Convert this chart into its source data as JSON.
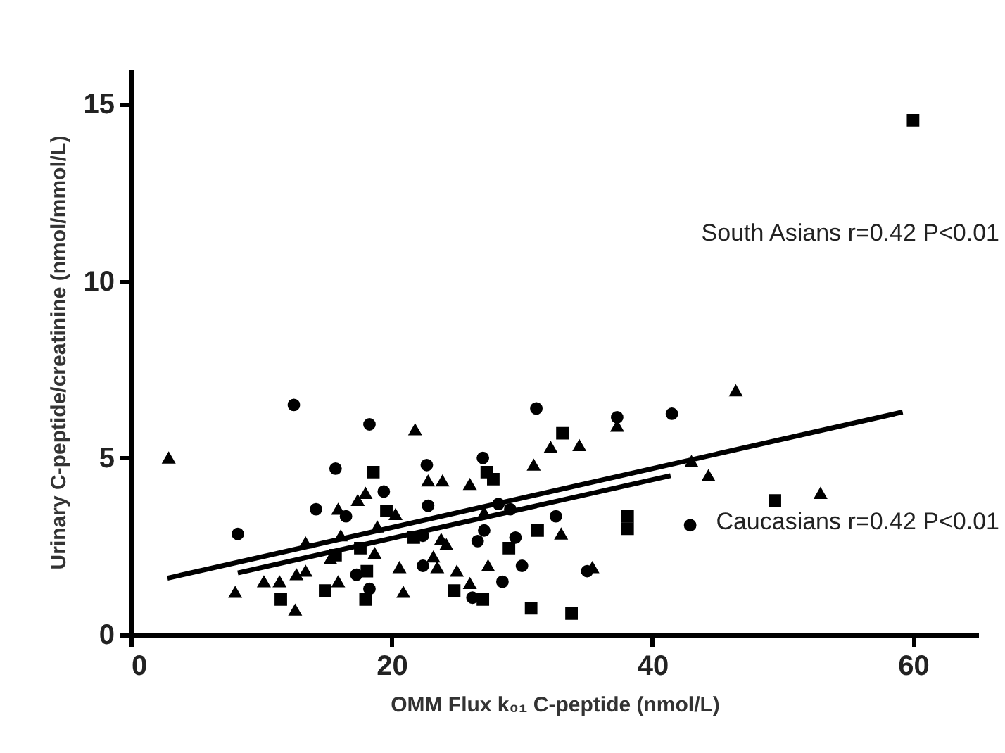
{
  "chart_data": {
    "type": "scatter",
    "xlabel": "OMM Flux k₀₁ C-peptide (nmol/L)",
    "ylabel": "Urinary C-peptide/creatinine (nmol/mmol/L)",
    "xlim": [
      0,
      65
    ],
    "ylim": [
      0,
      16
    ],
    "xticks": [
      0,
      20,
      40,
      60
    ],
    "yticks": [
      0,
      5,
      10,
      15
    ],
    "grid": false,
    "annotations": [
      "South Asians r=0.42 P<0.01",
      "Caucasians r=0.42 P<0.01"
    ],
    "series": [
      {
        "marker": "circle",
        "color": "#000000",
        "x": [
          12.5,
          18.3,
          14.2,
          17.3,
          18.3,
          31.1,
          37.3,
          27.0,
          22.8,
          28.2,
          29.1,
          32.6,
          42.9,
          26.6,
          22.4,
          22.4,
          30.0,
          35.0,
          26.2
        ],
        "values": [
          6.5,
          5.95,
          3.55,
          1.7,
          1.3,
          6.4,
          6.15,
          5.0,
          3.65,
          3.7,
          3.55,
          3.35,
          3.1,
          2.65,
          2.8,
          1.95,
          1.95,
          1.8,
          1.05
        ]
      },
      {
        "marker": "circle",
        "color": "#000000",
        "x": [
          15.7,
          19.4,
          16.5,
          8.2,
          41.5,
          22.7,
          27.1,
          29.5,
          28.5
        ],
        "values": [
          4.7,
          4.05,
          3.35,
          2.85,
          6.25,
          4.8,
          2.95,
          2.75,
          1.5
        ]
      },
      {
        "marker": "triangle",
        "color": "#000000",
        "x": [
          2.9,
          21.8,
          15.9,
          20.3,
          13.4,
          16.1,
          15.3,
          18.7,
          20.6,
          37.3,
          32.2,
          22.8,
          24.2,
          23.5,
          35.4,
          46.4,
          44.3,
          43.0,
          52.9
        ],
        "values": [
          5.0,
          5.8,
          3.55,
          3.4,
          2.6,
          2.8,
          2.15,
          2.3,
          1.9,
          5.9,
          5.3,
          4.35,
          2.55,
          1.9,
          1.9,
          6.9,
          4.5,
          4.9,
          4.0
        ]
      },
      {
        "marker": "triangle",
        "color": "#000000",
        "x": [
          18.0,
          17.4,
          18.9,
          13.4,
          12.7,
          11.4,
          10.2,
          8.0,
          15.9,
          12.6,
          20.9,
          34.4,
          30.9,
          23.9,
          26.0,
          27.1,
          33.0,
          23.8,
          23.2,
          25.0,
          27.4,
          26.0
        ],
        "values": [
          4.0,
          3.8,
          3.05,
          1.8,
          1.7,
          1.5,
          1.5,
          1.2,
          1.5,
          0.7,
          1.2,
          5.35,
          4.8,
          4.35,
          4.25,
          3.45,
          2.85,
          2.7,
          2.2,
          1.8,
          1.95,
          1.45
        ]
      },
      {
        "marker": "square",
        "color": "#000000",
        "x": [
          18.6,
          19.6,
          18.0,
          27.8,
          31.2,
          38.1,
          29.0,
          24.8,
          27.0,
          49.4,
          60.0
        ],
        "values": [
          4.6,
          3.5,
          1.0,
          4.4,
          2.95,
          3.0,
          2.45,
          1.25,
          1.0,
          3.8,
          14.55
        ]
      },
      {
        "marker": "square",
        "color": "#000000",
        "x": [
          21.7,
          17.6,
          15.7,
          18.1,
          14.9,
          11.5,
          33.1,
          27.3,
          38.1,
          30.7,
          33.8
        ],
        "values": [
          2.75,
          2.45,
          2.25,
          1.8,
          1.25,
          1.0,
          5.7,
          4.6,
          3.35,
          0.75,
          0.6
        ]
      },
      {
        "type": "line",
        "marker": "none",
        "line_style": "solid",
        "color": "#000000",
        "x": [
          2.8,
          59.2
        ],
        "values": [
          1.6,
          6.3
        ]
      },
      {
        "type": "line",
        "marker": "none",
        "line_style": "solid",
        "color": "#000000",
        "x": [
          8.2,
          41.4
        ],
        "values": [
          1.75,
          4.5
        ]
      }
    ]
  }
}
